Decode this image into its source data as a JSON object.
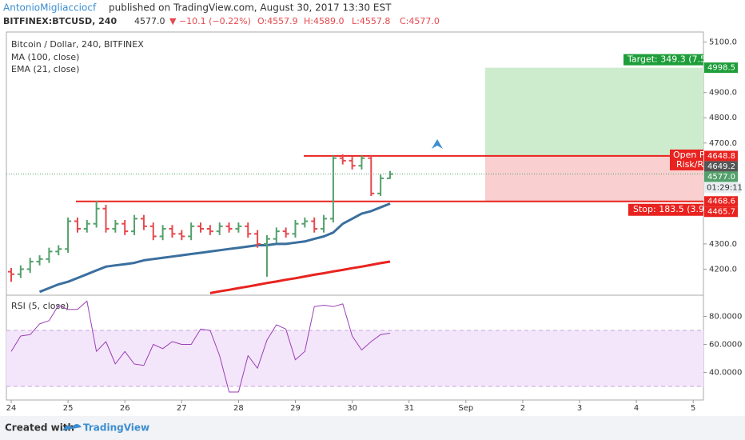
{
  "header": {
    "author": "AntonioMigliacciocf",
    "published": "published on TradingView.com, August 30, 2017 13:30 EST",
    "symbol": "BITFINEX:BTCUSD, 240",
    "last": "4577.0",
    "change": "▼ −10.1 (−0.22%)",
    "o": "O:4557.9",
    "h": "H:4589.0",
    "l": "L:4557.8",
    "c": "C:4577.0"
  },
  "footer": {
    "created": "Created with",
    "brand": "TradingView"
  },
  "chart_data": {
    "type": "ohlc",
    "title": "Bitcoin / Dollar, 240, BITFINEX",
    "up_color": "#53a06b",
    "down_color": "#e5484d",
    "xticks": [
      "24",
      "25",
      "26",
      "27",
      "28",
      "29",
      "30",
      "31",
      "Sep",
      "2",
      "3",
      "4",
      "5"
    ],
    "open": [
      4190,
      4180,
      4200,
      4230,
      4240,
      4270,
      4280,
      4390,
      4360,
      4380,
      4440,
      4360,
      4380,
      4350,
      4400,
      4370,
      4330,
      4360,
      4340,
      4330,
      4370,
      4360,
      4350,
      4370,
      4360,
      4370,
      4340,
      4300,
      4320,
      4350,
      4340,
      4380,
      4390,
      4360,
      4400,
      4640,
      4630,
      4610,
      4640,
      4500,
      4560
    ],
    "high": [
      4205,
      4215,
      4245,
      4255,
      4285,
      4295,
      4405,
      4405,
      4395,
      4470,
      4455,
      4395,
      4395,
      4415,
      4415,
      4385,
      4375,
      4375,
      4355,
      4385,
      4385,
      4375,
      4385,
      4385,
      4385,
      4385,
      4355,
      4335,
      4365,
      4365,
      4395,
      4405,
      4405,
      4415,
      4650,
      4655,
      4645,
      4650,
      4650,
      4575,
      4589
    ],
    "low": [
      4150,
      4165,
      4185,
      4215,
      4225,
      4255,
      4265,
      4345,
      4345,
      4365,
      4345,
      4345,
      4335,
      4335,
      4355,
      4315,
      4315,
      4325,
      4315,
      4315,
      4345,
      4335,
      4335,
      4345,
      4345,
      4325,
      4285,
      4170,
      4305,
      4325,
      4325,
      4365,
      4345,
      4345,
      4385,
      4615,
      4595,
      4595,
      4490,
      4490,
      4557.8
    ],
    "close": [
      4180,
      4200,
      4230,
      4240,
      4270,
      4280,
      4390,
      4360,
      4380,
      4440,
      4360,
      4380,
      4350,
      4400,
      4370,
      4330,
      4360,
      4340,
      4330,
      4370,
      4360,
      4350,
      4370,
      4360,
      4370,
      4340,
      4300,
      4320,
      4350,
      4340,
      4380,
      4390,
      4360,
      4400,
      4640,
      4630,
      4610,
      4640,
      4500,
      4560,
      4577
    ],
    "series": [
      {
        "name": "MA (100, close)",
        "color": "#e8231f",
        "values": [
          null,
          null,
          null,
          null,
          null,
          null,
          null,
          null,
          null,
          null,
          null,
          null,
          null,
          null,
          null,
          null,
          null,
          null,
          null,
          null,
          null,
          4105,
          4112,
          4118,
          4125,
          4131,
          4138,
          4145,
          4151,
          4158,
          4164,
          4171,
          4178,
          4184,
          4191,
          4197,
          4204,
          4210,
          4217,
          4224,
          4230
        ]
      },
      {
        "name": "EMA (21, close)",
        "color": "#3a6f9e",
        "values": [
          null,
          null,
          null,
          4110,
          4125,
          4140,
          4150,
          4165,
          4180,
          4195,
          4210,
          4215,
          4220,
          4225,
          4235,
          4240,
          4245,
          4250,
          4255,
          4260,
          4265,
          4270,
          4275,
          4280,
          4285,
          4290,
          4295,
          4295,
          4300,
          4300,
          4305,
          4310,
          4320,
          4330,
          4345,
          4380,
          4400,
          4420,
          4430,
          4445,
          4460
        ]
      }
    ],
    "ylim": [
      4100,
      5140
    ],
    "yticks": [
      {
        "value": 5100,
        "label": "5100.0"
      },
      {
        "value": 4900,
        "label": "4900.0"
      },
      {
        "value": 4800,
        "label": "4800.0"
      },
      {
        "value": 4700,
        "label": "4700.0"
      },
      {
        "value": 4300,
        "label": "4300.0"
      },
      {
        "value": 4200,
        "label": "4200.0"
      }
    ],
    "price_labels": [
      {
        "value": 4998.5,
        "label": "4998.5",
        "color": "#1e9e3a"
      },
      {
        "value": 4648.8,
        "label": "4648.8",
        "color": "#e8231f"
      },
      {
        "value": 4649.2,
        "label": "4649.2",
        "color": "#555555"
      },
      {
        "value": 4577.0,
        "label": "4577.0",
        "color": "#53a06b"
      },
      {
        "value": 4468.6,
        "label": "4468.6",
        "color": "#e8231f"
      },
      {
        "value": 4465.7,
        "label": "4465.7",
        "color": "#e8231f"
      }
    ],
    "countdown": "01:29:11",
    "position": {
      "target_label": "Target: 349.3 (7.5",
      "open_label": "Open P",
      "risk_label": "Risk/R",
      "stop_label": "Stop: 183.5 (3.9"
    },
    "rsi": {
      "name": "RSI (5, close)",
      "color": "#9b3fb5",
      "values": [
        54.9,
        66,
        67,
        74.6,
        77,
        88,
        85,
        85,
        91,
        55,
        62,
        46,
        55,
        46,
        45,
        60,
        57,
        62,
        60,
        60,
        71,
        70,
        52,
        26,
        26,
        52,
        43,
        63,
        74,
        71,
        49,
        55,
        87,
        88,
        87,
        89,
        66,
        56,
        62,
        67,
        68
      ],
      "ylim": [
        20,
        94
      ],
      "yticks": [
        {
          "value": 80,
          "label": "80.0000"
        },
        {
          "value": 60,
          "label": "60.0000"
        },
        {
          "value": 40,
          "label": "40.0000"
        }
      ],
      "band": [
        30,
        70
      ]
    }
  }
}
